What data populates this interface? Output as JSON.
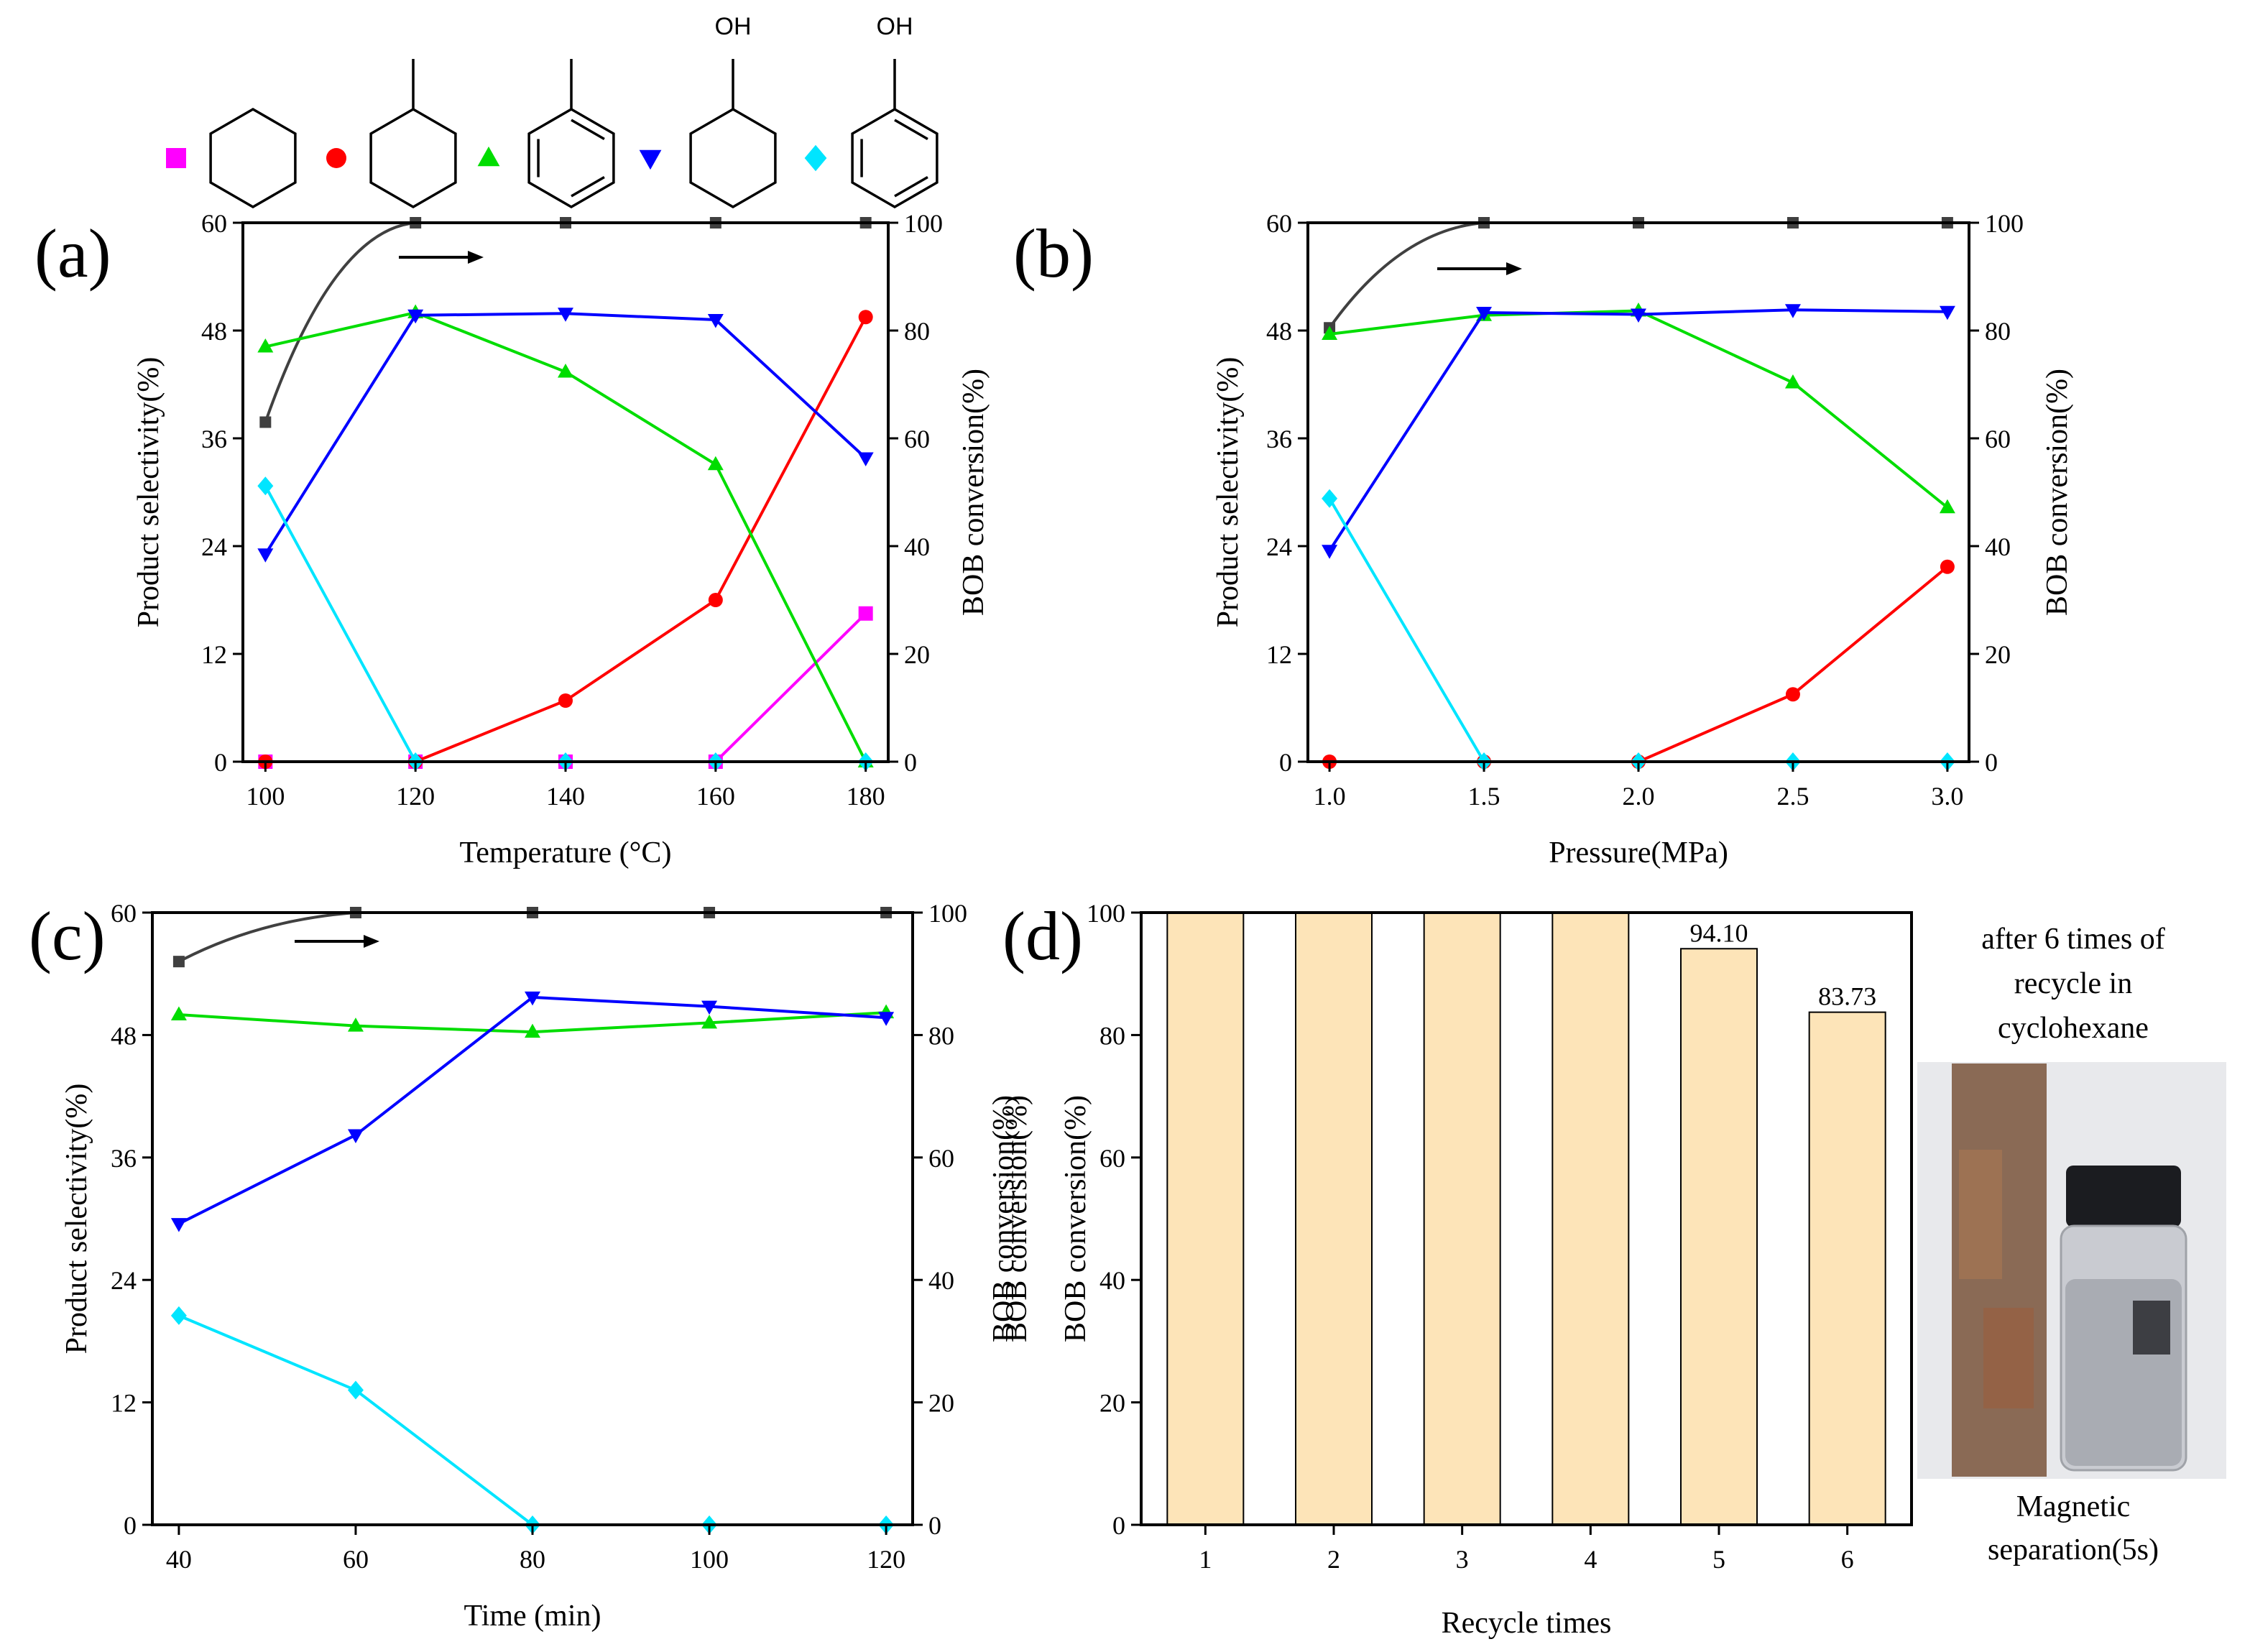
{
  "legend": {
    "items": [
      {
        "marker": "square",
        "color": "#ff00ff",
        "molecule": "cyclohexane",
        "label": ""
      },
      {
        "marker": "circle",
        "color": "#ff0000",
        "molecule": "methylcyclohexane",
        "label": ""
      },
      {
        "marker": "triangle-up",
        "color": "#00dd00",
        "molecule": "toluene",
        "label": ""
      },
      {
        "marker": "triangle-down",
        "color": "#0000ff",
        "molecule": "cyclohexanol",
        "label": "OH"
      },
      {
        "marker": "diamond",
        "color": "#00e5ff",
        "molecule": "phenol",
        "label": "OH"
      }
    ]
  },
  "photo": {
    "caption_top": [
      "after 6 times of",
      "recycle in",
      "cyclohexane"
    ],
    "caption_bottom": [
      "Magnetic",
      "separation(5s)"
    ]
  },
  "chart_data": [
    {
      "panel": "(a)",
      "type": "line",
      "xlabel": "Temperature (°C)",
      "ylabel": "Product selectivity(%)",
      "y2label": "BOB conversion(%)",
      "x": [
        100,
        120,
        140,
        160,
        180
      ],
      "xticks": [
        "100",
        "120",
        "140",
        "160",
        "180"
      ],
      "xlim": [
        97,
        183
      ],
      "ylim": [
        0,
        60
      ],
      "yticks": [
        "0",
        "12",
        "24",
        "36",
        "48",
        "60"
      ],
      "y2lim": [
        0,
        100
      ],
      "y2ticks": [
        "0",
        "20",
        "40",
        "60",
        "80",
        "100"
      ],
      "arrow_note": "→ BOB conversion on right axis",
      "conversion": {
        "name": "BOB conversion",
        "color": "#404040",
        "values": [
          63,
          100,
          100,
          100,
          100
        ]
      },
      "series": [
        {
          "name": "cyclohexane",
          "color": "#ff00ff",
          "marker": "square",
          "values": [
            0,
            0,
            0,
            0,
            16.5
          ]
        },
        {
          "name": "methylcyclohexane",
          "color": "#ff0000",
          "marker": "circle",
          "values": [
            0,
            0,
            6.8,
            18,
            49.5
          ]
        },
        {
          "name": "toluene",
          "color": "#00dd00",
          "marker": "triangle-up",
          "values": [
            46.2,
            50.0,
            43.4,
            33.1,
            0
          ]
        },
        {
          "name": "cyclohexanol",
          "color": "#0000ff",
          "marker": "triangle-down",
          "values": [
            23.1,
            49.7,
            49.9,
            49.2,
            33.8
          ]
        },
        {
          "name": "phenol",
          "color": "#00e5ff",
          "marker": "diamond",
          "values": [
            30.7,
            0,
            0,
            0,
            0
          ]
        }
      ]
    },
    {
      "panel": "(b)",
      "type": "line",
      "xlabel": "Pressure(MPa)",
      "ylabel": "Product selectivity(%)",
      "y2label": "BOB conversion(%)",
      "x": [
        1.0,
        1.5,
        2.0,
        2.5,
        3.0
      ],
      "xticks": [
        "1.0",
        "1.5",
        "2.0",
        "2.5",
        "3.0"
      ],
      "xlim": [
        0.93,
        3.07
      ],
      "ylim": [
        0,
        60
      ],
      "yticks": [
        "0",
        "12",
        "24",
        "36",
        "48",
        "60"
      ],
      "y2lim": [
        0,
        100
      ],
      "y2ticks": [
        "0",
        "20",
        "40",
        "60",
        "80",
        "100"
      ],
      "arrow_note": "→ BOB conversion on right axis",
      "conversion": {
        "name": "BOB conversion",
        "color": "#404040",
        "values": [
          80.5,
          100,
          100,
          100,
          100
        ]
      },
      "series": [
        {
          "name": "methylcyclohexane",
          "color": "#ff0000",
          "marker": "circle",
          "values": [
            0,
            0,
            0,
            7.5,
            21.7
          ]
        },
        {
          "name": "toluene",
          "color": "#00dd00",
          "marker": "triangle-up",
          "values": [
            47.6,
            49.7,
            50.2,
            42.2,
            28.3
          ]
        },
        {
          "name": "cyclohexanol",
          "color": "#0000ff",
          "marker": "triangle-down",
          "values": [
            23.5,
            50.0,
            49.8,
            50.3,
            50.1
          ]
        },
        {
          "name": "phenol",
          "color": "#00e5ff",
          "marker": "diamond",
          "values": [
            29.3,
            0,
            0,
            0,
            0
          ]
        }
      ]
    },
    {
      "panel": "(c)",
      "type": "line",
      "xlabel": "Time (min)",
      "ylabel": "Product selectivity(%)",
      "y2label": "BOB conversion(%)",
      "x": [
        40,
        60,
        80,
        100,
        120
      ],
      "xticks": [
        "40",
        "60",
        "80",
        "100",
        "120"
      ],
      "xlim": [
        37,
        123
      ],
      "ylim": [
        0,
        60
      ],
      "yticks": [
        "0",
        "12",
        "24",
        "36",
        "48",
        "60"
      ],
      "y2lim": [
        0,
        100
      ],
      "y2ticks": [
        "0",
        "20",
        "40",
        "60",
        "80",
        "100"
      ],
      "arrow_note": "→ BOB conversion on right axis",
      "conversion": {
        "name": "BOB conversion",
        "color": "#404040",
        "values": [
          92,
          100,
          100,
          100,
          100
        ]
      },
      "series": [
        {
          "name": "toluene",
          "color": "#00dd00",
          "marker": "triangle-up",
          "values": [
            50.0,
            48.9,
            48.3,
            49.2,
            50.2
          ]
        },
        {
          "name": "cyclohexanol",
          "color": "#0000ff",
          "marker": "triangle-down",
          "values": [
            29.5,
            38.2,
            51.7,
            50.8,
            49.7
          ]
        },
        {
          "name": "phenol",
          "color": "#00e5ff",
          "marker": "diamond",
          "values": [
            20.5,
            13.2,
            0,
            0,
            0
          ]
        }
      ]
    },
    {
      "panel": "(d)",
      "type": "bar",
      "xlabel": "Recycle times",
      "ylabel": "BOB conversion(%)",
      "y2label": "BOB conversion(%)",
      "categories": [
        "1",
        "2",
        "3",
        "4",
        "5",
        "6"
      ],
      "values": [
        100,
        100,
        100,
        100,
        94.1,
        83.73
      ],
      "value_labels": [
        "",
        "",
        "",
        "",
        "94.10",
        "83.73"
      ],
      "ylim": [
        0,
        100
      ],
      "yticks": [
        "0",
        "20",
        "40",
        "60",
        "80",
        "100"
      ],
      "bar_color": "#fde4b8"
    }
  ]
}
